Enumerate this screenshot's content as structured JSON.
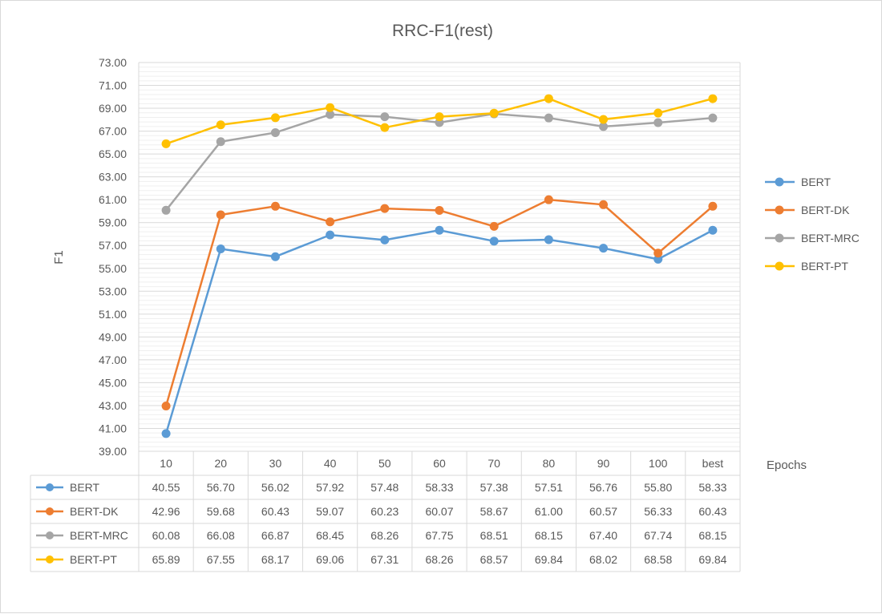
{
  "chart_data": {
    "type": "line",
    "title": "RRC-F1(rest)",
    "xlabel": "Epochs",
    "ylabel": "F1",
    "ylim": [
      39.0,
      73.0
    ],
    "y_major_step": 2.0,
    "y_tick_labels": [
      "39.00",
      "41.00",
      "43.00",
      "45.00",
      "47.00",
      "49.00",
      "51.00",
      "53.00",
      "55.00",
      "57.00",
      "59.00",
      "61.00",
      "63.00",
      "65.00",
      "67.00",
      "69.00",
      "71.00",
      "73.00"
    ],
    "grid": true,
    "legend_position": "right",
    "data_table": true,
    "categories": [
      "10",
      "20",
      "30",
      "40",
      "50",
      "60",
      "70",
      "80",
      "90",
      "100",
      "best"
    ],
    "series": [
      {
        "name": "BERT",
        "color": "#5b9bd5",
        "values": [
          40.55,
          56.7,
          56.02,
          57.92,
          57.48,
          58.33,
          57.38,
          57.51,
          56.76,
          55.8,
          58.33
        ],
        "value_labels": [
          "40.55",
          "56.70",
          "56.02",
          "57.92",
          "57.48",
          "58.33",
          "57.38",
          "57.51",
          "56.76",
          "55.80",
          "58.33"
        ]
      },
      {
        "name": "BERT-DK",
        "color": "#ed7d31",
        "values": [
          42.96,
          59.68,
          60.43,
          59.07,
          60.23,
          60.07,
          58.67,
          61.0,
          60.57,
          56.33,
          60.43
        ],
        "value_labels": [
          "42.96",
          "59.68",
          "60.43",
          "59.07",
          "60.23",
          "60.07",
          "58.67",
          "61.00",
          "60.57",
          "56.33",
          "60.43"
        ]
      },
      {
        "name": "BERT-MRC",
        "color": "#a5a5a5",
        "values": [
          60.08,
          66.08,
          66.87,
          68.45,
          68.26,
          67.75,
          68.51,
          68.15,
          67.4,
          67.74,
          68.15
        ],
        "value_labels": [
          "60.08",
          "66.08",
          "66.87",
          "68.45",
          "68.26",
          "67.75",
          "68.51",
          "68.15",
          "67.40",
          "67.74",
          "68.15"
        ]
      },
      {
        "name": "BERT-PT",
        "color": "#ffc000",
        "values": [
          65.89,
          67.55,
          68.17,
          69.06,
          67.31,
          68.26,
          68.57,
          69.84,
          68.02,
          68.58,
          69.84
        ],
        "value_labels": [
          "65.89",
          "67.55",
          "68.17",
          "69.06",
          "67.31",
          "68.26",
          "68.57",
          "69.84",
          "68.02",
          "68.58",
          "69.84"
        ]
      }
    ]
  }
}
